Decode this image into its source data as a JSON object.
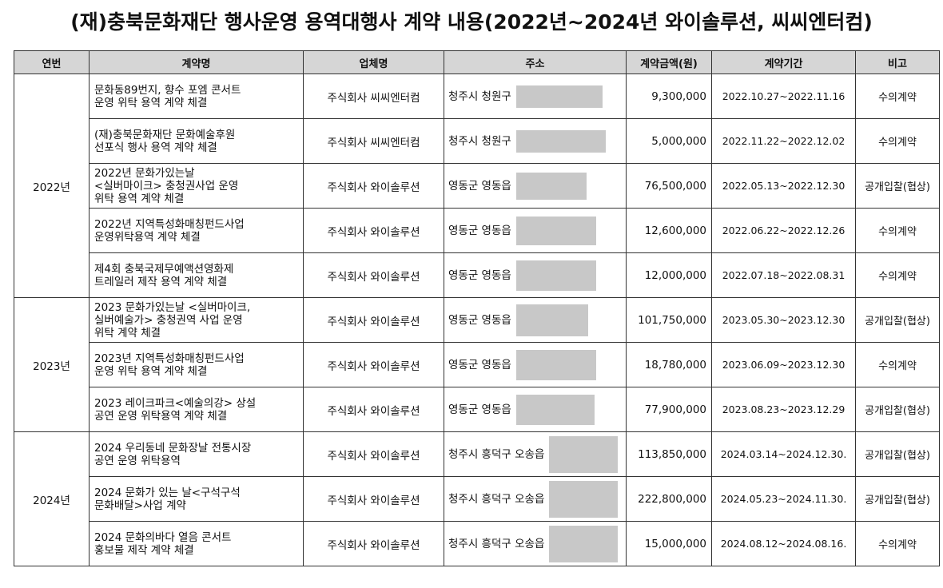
{
  "title": "(재)충북문화재단 행사운영 용역대행사 계약 내용(2022년~2024년 와이솔루션, 씨씨엔터컴)",
  "headers": [
    "연번",
    "계약명",
    "업체명",
    "주소",
    "계약금액(원)",
    "계약기간",
    "비고"
  ],
  "years": [
    "2022년",
    "2023년",
    "2024년"
  ],
  "rows": [
    {
      "name": "문화동89번지, 향수 포엠 콘서트\n운영 위탁 용역 계약 체결",
      "vendor": "주식회사 씨씨엔터컴",
      "address": "청주시 청원구",
      "amount": "9,300,000",
      "period": "2022.10.27~2022.11.16",
      "note": "수의계약"
    },
    {
      "name": "(재)충북문화재단 문화예술후원\n선포식 행사 용역 계약 체결",
      "vendor": "주식회사 씨씨엔터컴",
      "address": "청주시 청원구",
      "amount": "5,000,000",
      "period": "2022.11.22~2022.12.02",
      "note": "수의계약"
    },
    {
      "name": "2022년 문화가있는날\n<실버마이크> 충청권사업 운영\n위탁 용역 계약 체결",
      "vendor": "주식회사 와이솔루션",
      "address": "영동군 영동읍",
      "amount": "76,500,000",
      "period": "2022.05.13~2022.12.30",
      "note": "공개입찰(협상)"
    },
    {
      "name": "2022년 지역특성화매칭펀드사업\n운영위탁용역 계약 체결",
      "vendor": "주식회사 와이솔루션",
      "address": "영동군 영동읍",
      "amount": "12,600,000",
      "period": "2022.06.22~2022.12.26",
      "note": "수의계약"
    },
    {
      "name": "제4회 충북국제무예액션영화제\n트레일러 제작 용역 계약 체결",
      "vendor": "주식회사 와이솔루션",
      "address": "영동군 영동읍",
      "amount": "12,000,000",
      "period": "2022.07.18~2022.08.31",
      "note": "수의계약"
    },
    {
      "name": "2023 문화가있는날 <실버마이크,\n실버예술가> 충청권역 사업 운영\n위탁 계약 체결",
      "vendor": "주식회사 와이솔루션",
      "address": "영동군 영동읍",
      "amount": "101,750,000",
      "period": "2023.05.30~2023.12.30",
      "note": "공개입찰(협상)"
    },
    {
      "name": "2023년 지역특성화매칭펀드사업\n운영 위탁 용역 계약 체결",
      "vendor": "주식회사 와이솔루션",
      "address": "영동군 영동읍",
      "amount": "18,780,000",
      "period": "2023.06.09~2023.12.30",
      "note": "수의계약"
    },
    {
      "name": "2023 레이크파크<예술의강> 상설\n공연 운영 위탁용역 계약 체결",
      "vendor": "주식회사 와이솔루션",
      "address": "영동군 영동읍",
      "amount": "77,900,000",
      "period": "2023.08.23~2023.12.29",
      "note": "공개입찰(협상)"
    },
    {
      "name": "2024 우리동네 문화장날 전통시장\n공연 운영 위탁용역",
      "vendor": "주식회사 와이솔루션",
      "address": "청주시 흥덕구 오송읍",
      "amount": "113,850,000",
      "period": "2024.03.14~2024.12.30.",
      "note": "공개입찰(협상)"
    },
    {
      "name": "2024 문화가 있는 날<구석구석\n문화배달>사업 계약",
      "vendor": "주식회사 와이솔루션",
      "address": "청주시 흥덕구 오송읍",
      "amount": "222,800,000",
      "period": "2024.05.23~2024.11.30.",
      "note": "공개입찰(협상)"
    },
    {
      "name": "2024 문화의바다 열음 콘서트\n홍보물 제작 계약 체결",
      "vendor": "주식회사 와이솔루션",
      "address": "청주시 흥덕구 오송읍",
      "amount": "15,000,000",
      "period": "2024.08.12~2024.08.16.",
      "note": "수의계약"
    }
  ]
}
